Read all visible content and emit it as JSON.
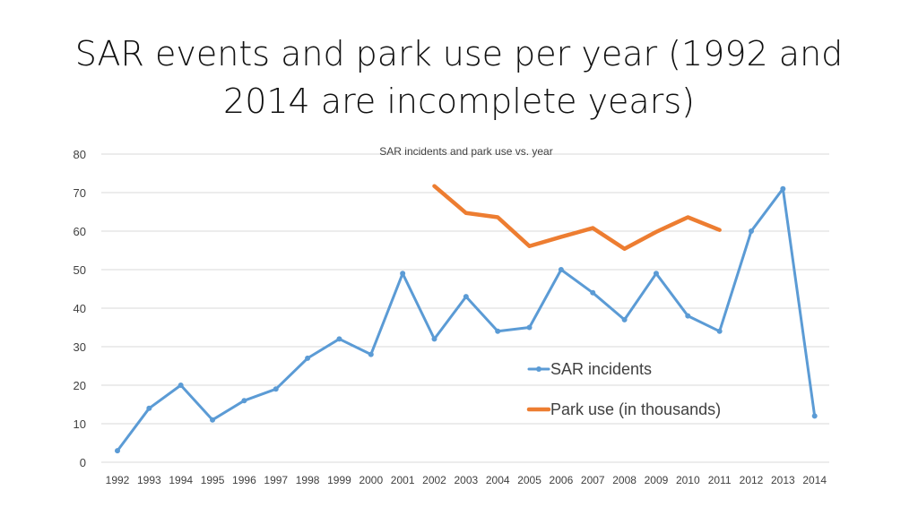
{
  "slide": {
    "title": "SAR events and park use per year (1992 and 2014 are incomplete years)"
  },
  "colors": {
    "sar": "#5B9BD5",
    "park": "#ED7D31",
    "grid": "#D9D9D9",
    "text": "#404040"
  },
  "chart_data": {
    "type": "line",
    "title": "SAR incidents and park use vs. year",
    "xlabel": "",
    "ylabel": "",
    "categories": [
      "1992",
      "1993",
      "1994",
      "1995",
      "1996",
      "1997",
      "1998",
      "1999",
      "2000",
      "2001",
      "2002",
      "2003",
      "2004",
      "2005",
      "2006",
      "2007",
      "2008",
      "2009",
      "2010",
      "2011",
      "2012",
      "2013",
      "2014"
    ],
    "ylim": [
      0,
      80
    ],
    "yticks": [
      0,
      10,
      20,
      30,
      40,
      50,
      60,
      70,
      80
    ],
    "grid": true,
    "legend_position": "right, inside plot area",
    "series": [
      {
        "name": "SAR incidents",
        "color": "#5B9BD5",
        "markers": true,
        "values": [
          3,
          14,
          20,
          11,
          16,
          19,
          27,
          32,
          28,
          49,
          32,
          43,
          34,
          35,
          50,
          44,
          37,
          49,
          38,
          34,
          60,
          71,
          12
        ]
      },
      {
        "name": "Park use (in thousands)",
        "color": "#ED7D31",
        "markers": false,
        "values": [
          null,
          null,
          null,
          null,
          null,
          null,
          null,
          null,
          null,
          null,
          71.7,
          64.7,
          63.6,
          56.1,
          58.5,
          60.8,
          55.4,
          59.8,
          63.6,
          60.3,
          null,
          null,
          null
        ]
      }
    ]
  }
}
